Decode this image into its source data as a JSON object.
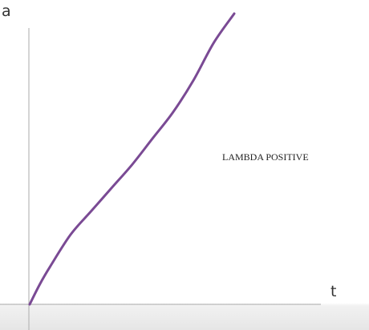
{
  "chart_data": {
    "type": "line",
    "title": "",
    "xlabel": "t",
    "ylabel": "a",
    "annotations": [
      "LAMBDA POSITIVE"
    ],
    "grid": false,
    "legend": "none",
    "xlim": [
      0,
      1
    ],
    "ylim": [
      0,
      1
    ],
    "series": [
      {
        "color": "#7a4a94",
        "x": [
          0,
          0.05,
          0.1,
          0.2,
          0.3,
          0.4,
          0.5,
          0.6,
          0.7,
          0.8,
          0.9,
          1.0
        ],
        "y": [
          0,
          0.07,
          0.13,
          0.24,
          0.32,
          0.4,
          0.48,
          0.57,
          0.66,
          0.77,
          0.9,
          1.0
        ]
      }
    ]
  },
  "colors": {
    "curve": "#7a4a94",
    "axis": "#b8b8b8",
    "text": "#333333"
  }
}
